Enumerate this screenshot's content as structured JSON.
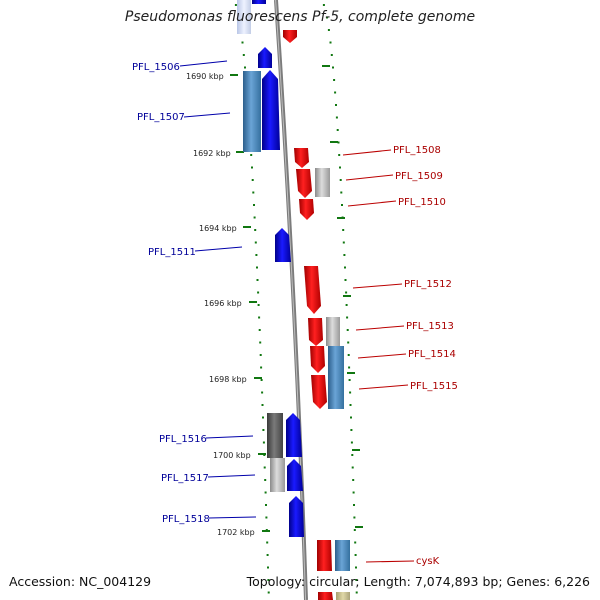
{
  "title": "Pseudomonas fluorescens Pf-5, complete genome",
  "footer": {
    "accession": "Accession: NC_004129",
    "topology": "Topology: circular; Length: 7,074,893 bp; Genes: 6,226"
  },
  "colors": {
    "forward_gene": "#0000ee",
    "reverse_gene": "#ee0000",
    "cds_steel": "#4682b4",
    "cds_gray": "#b0b0b0",
    "cds_dark": "#606060",
    "ruler_tick": "#117711",
    "backbone": "#888888",
    "left_label": "#000099",
    "right_label": "#aa0000"
  },
  "ruler_labels": [
    {
      "label": "1690 kbp",
      "pos_kbp": 1690
    },
    {
      "label": "1692 kbp",
      "pos_kbp": 1692
    },
    {
      "label": "1694 kbp",
      "pos_kbp": 1694
    },
    {
      "label": "1696 kbp",
      "pos_kbp": 1696
    },
    {
      "label": "1698 kbp",
      "pos_kbp": 1698
    },
    {
      "label": "1700 kbp",
      "pos_kbp": 1700
    },
    {
      "label": "1702 kbp",
      "pos_kbp": 1702
    }
  ],
  "gene_labels_left": [
    {
      "name": "PFL_1506"
    },
    {
      "name": "PFL_1507"
    },
    {
      "name": "PFL_1511"
    },
    {
      "name": "PFL_1516"
    },
    {
      "name": "PFL_1517"
    },
    {
      "name": "PFL_1518"
    }
  ],
  "gene_labels_right": [
    {
      "name": "PFL_1508"
    },
    {
      "name": "PFL_1509"
    },
    {
      "name": "PFL_1510"
    },
    {
      "name": "PFL_1512"
    },
    {
      "name": "PFL_1513"
    },
    {
      "name": "PFL_1514"
    },
    {
      "name": "PFL_1515"
    },
    {
      "name": "cysK"
    }
  ]
}
